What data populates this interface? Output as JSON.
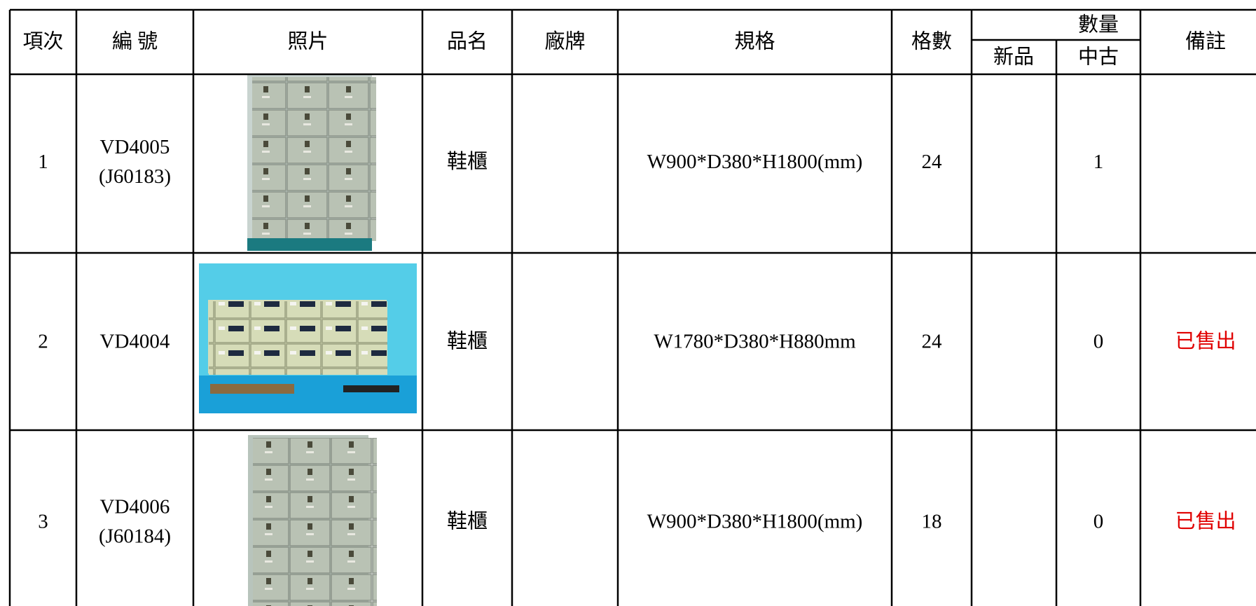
{
  "header": {
    "columns": [
      "項次",
      "編 號",
      "照片",
      "品名",
      "廠牌",
      "規格",
      "格數"
    ],
    "quantity": {
      "title": "數量",
      "new": "新品",
      "used": "中古"
    },
    "remark": "備註"
  },
  "rows": [
    {
      "no": 1,
      "code": "VD4005",
      "code2": "(J60183)",
      "name": "鞋櫃",
      "spec": "W900*D380*H1800(mm)",
      "cells": 24,
      "used": 1
    },
    {
      "no": 2,
      "code": "VD4004",
      "name": "鞋櫃",
      "spec": "W1780*D380*H880mm",
      "cells": 24,
      "used": 0,
      "remark": "已售出"
    },
    {
      "no": 3,
      "code": "VD4006",
      "code2": "(J60184)",
      "name": "鞋櫃",
      "spec": "W900*D380*H1800(mm)",
      "cells": 18,
      "used": 0,
      "remark": "已售出"
    }
  ]
}
